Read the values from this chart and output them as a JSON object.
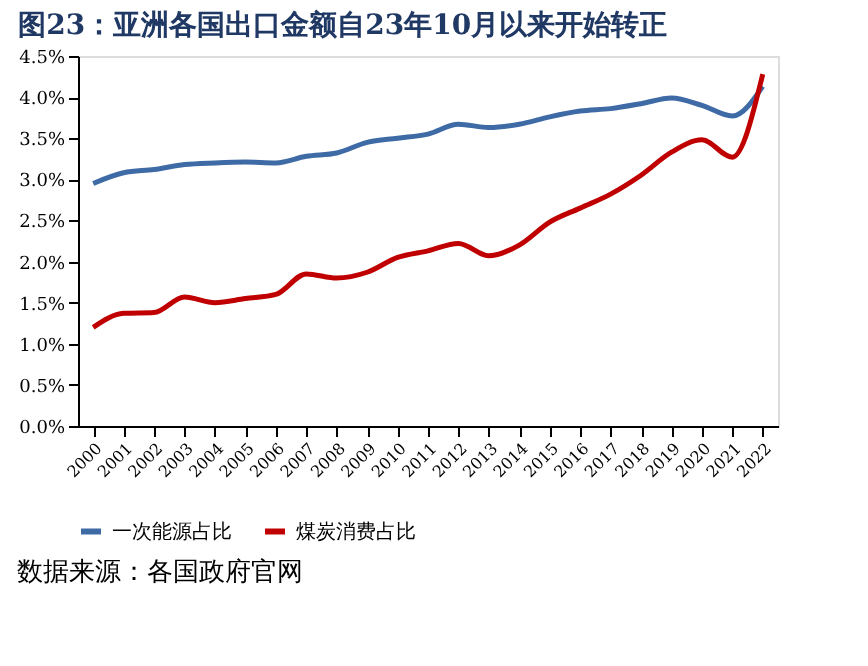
{
  "chart_data": {
    "type": "line",
    "title": "图23：亚洲各国出口金额自23年10月以来开始转正",
    "categories": [
      "2000",
      "2001",
      "2002",
      "2003",
      "2004",
      "2005",
      "2006",
      "2007",
      "2008",
      "2009",
      "2010",
      "2011",
      "2012",
      "2013",
      "2014",
      "2015",
      "2016",
      "2017",
      "2018",
      "2019",
      "2020",
      "2021",
      "2022"
    ],
    "series": [
      {
        "name": "一次能源占比",
        "color": "#3e6aa6",
        "values": [
          2.95,
          3.08,
          3.12,
          3.18,
          3.2,
          3.21,
          3.2,
          3.28,
          3.32,
          3.45,
          3.5,
          3.55,
          3.67,
          3.63,
          3.67,
          3.76,
          3.83,
          3.86,
          3.92,
          3.99,
          3.9,
          3.77,
          4.13
        ]
      },
      {
        "name": "煤炭消费占比",
        "color": "#c00000",
        "values": [
          1.2,
          1.37,
          1.38,
          1.57,
          1.5,
          1.55,
          1.6,
          1.85,
          1.8,
          1.87,
          2.05,
          2.13,
          2.22,
          2.07,
          2.2,
          2.48,
          2.65,
          2.82,
          3.05,
          3.33,
          3.48,
          3.27,
          4.28
        ]
      }
    ],
    "ylim": [
      0,
      4.5
    ],
    "yticks": [
      {
        "value": 0,
        "label": "0.0%"
      },
      {
        "value": 0.5,
        "label": "0.5%"
      },
      {
        "value": 1,
        "label": "1.0%"
      },
      {
        "value": 1.5,
        "label": "1.5%"
      },
      {
        "value": 2,
        "label": "2.0%"
      },
      {
        "value": 2.5,
        "label": "2.5%"
      },
      {
        "value": 3,
        "label": "3.0%"
      },
      {
        "value": 3.5,
        "label": "3.5%"
      },
      {
        "value": 4,
        "label": "4.0%"
      },
      {
        "value": 4.5,
        "label": "4.5%"
      }
    ],
    "legend": "bottom",
    "grid": false,
    "marker": "none",
    "line_style": "solid",
    "annotations": [
      "数据来源：各国政府官网"
    ]
  }
}
